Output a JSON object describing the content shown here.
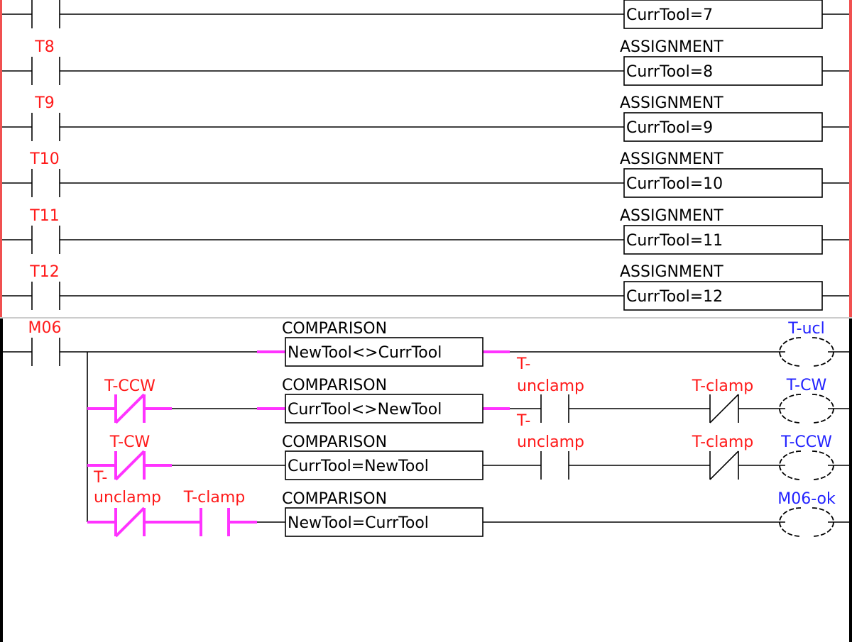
{
  "colors": {
    "selected_rail": "#f05050",
    "rail": "#000000",
    "contact_label": "#ff1a1a",
    "coil_label": "#2222ff",
    "energized": "#ff33ff"
  },
  "top_section": {
    "selected": true,
    "rungs": [
      {
        "contact": "",
        "block_type": "",
        "expression": "CurrTool=7"
      },
      {
        "contact": "T8",
        "block_type": "ASSIGNMENT",
        "expression": "CurrTool=8"
      },
      {
        "contact": "T9",
        "block_type": "ASSIGNMENT",
        "expression": "CurrTool=9"
      },
      {
        "contact": "T10",
        "block_type": "ASSIGNMENT",
        "expression": "CurrTool=10"
      },
      {
        "contact": "T11",
        "block_type": "ASSIGNMENT",
        "expression": "CurrTool=11"
      },
      {
        "contact": "T12",
        "block_type": "ASSIGNMENT",
        "expression": "CurrTool=12"
      }
    ]
  },
  "bottom_section": {
    "main_contact": "M06",
    "branches": [
      {
        "contacts": [],
        "block_type": "COMPARISON",
        "expression": "NewTool<>CurrTool",
        "after": [],
        "coil": "T-ucl"
      },
      {
        "contacts": [
          {
            "label": "T-CCW",
            "type": "normally-closed",
            "energized": true
          }
        ],
        "block_type": "COMPARISON",
        "expression": "CurrTool<>NewTool",
        "after": [
          {
            "label_1": "T-",
            "label_2": "unclamp",
            "type": "normally-open"
          },
          {
            "label_1": "T-clamp",
            "type": "normally-closed"
          }
        ],
        "coil": "T-CW"
      },
      {
        "contacts": [
          {
            "label": "T-CW",
            "type": "normally-closed",
            "energized": true
          }
        ],
        "block_type": "COMPARISON",
        "expression": "CurrTool=NewTool",
        "after": [
          {
            "label_1": "T-",
            "label_2": "unclamp",
            "type": "normally-open"
          },
          {
            "label_1": "T-clamp",
            "type": "normally-closed"
          }
        ],
        "coil": "T-CCW"
      },
      {
        "contacts": [
          {
            "label_1": "T-",
            "label_2": "unclamp",
            "type": "normally-closed",
            "energized": true
          },
          {
            "label_1": "T-clamp",
            "type": "normally-open",
            "energized": true
          }
        ],
        "block_type": "COMPARISON",
        "expression": "NewTool=CurrTool",
        "after": [],
        "coil": "M06-ok"
      }
    ]
  }
}
